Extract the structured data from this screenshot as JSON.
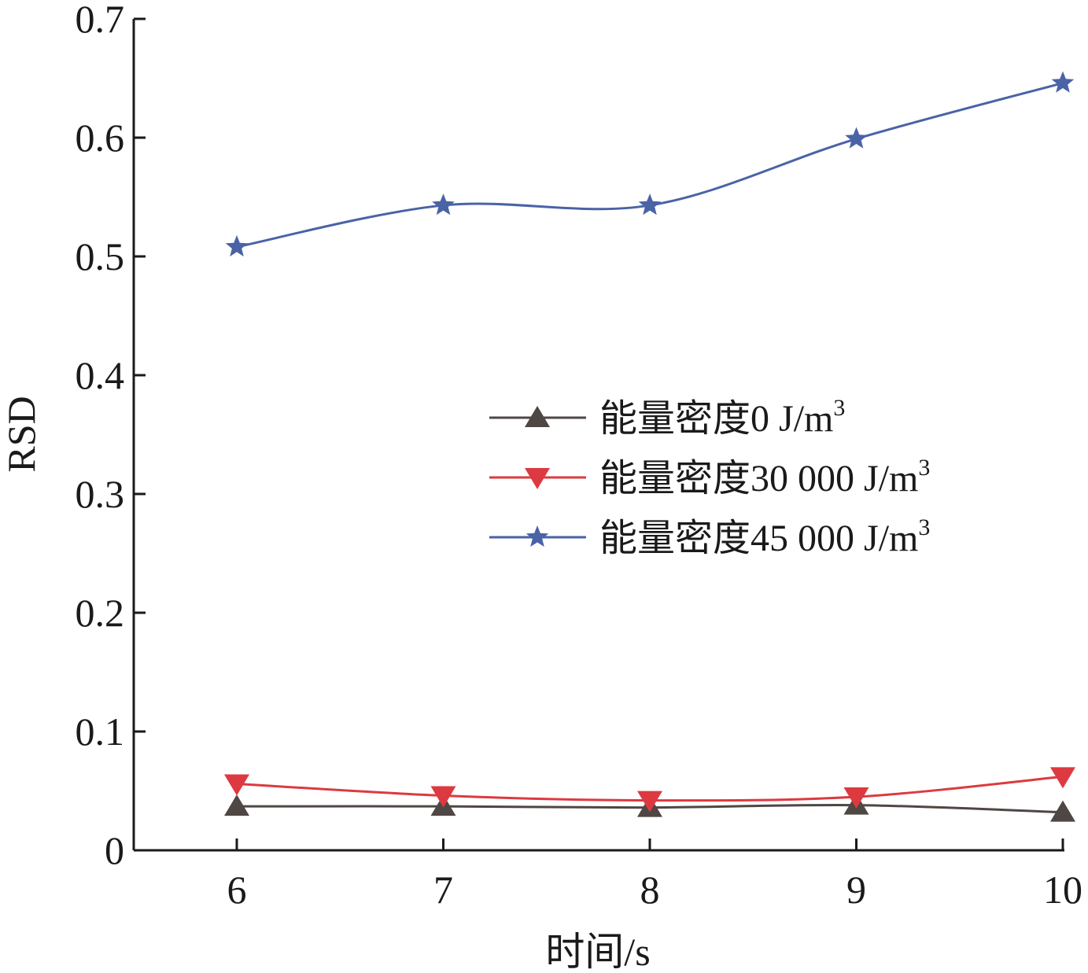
{
  "chart_data": {
    "type": "line",
    "title": "",
    "xlabel": "时间/s",
    "ylabel": "RSD",
    "x": [
      6,
      7,
      8,
      9,
      10
    ],
    "xlim": [
      5.5,
      10
    ],
    "ylim": [
      0,
      0.7
    ],
    "xticks": [
      "6",
      "7",
      "8",
      "9",
      "10"
    ],
    "yticks": [
      "0",
      "0.1",
      "0.2",
      "0.3",
      "0.4",
      "0.5",
      "0.6",
      "0.7"
    ],
    "yticks_values": [
      0,
      0.1,
      0.2,
      0.3,
      0.4,
      0.5,
      0.6,
      0.7
    ],
    "grid": false,
    "legend_position": "right-middle",
    "series": [
      {
        "name_prefix": "能量密度",
        "name_main": "0 J/m",
        "name_sup": "3",
        "marker": "triangle-up",
        "color": "#4f4744",
        "values": [
          0.037,
          0.037,
          0.036,
          0.038,
          0.032
        ]
      },
      {
        "name_prefix": "能量密度",
        "name_main": "30 000 J/m",
        "name_sup": "3",
        "marker": "triangle-down",
        "color": "#dc3a40",
        "values": [
          0.056,
          0.046,
          0.042,
          0.045,
          0.062
        ]
      },
      {
        "name_prefix": "能量密度",
        "name_main": "45 000 J/m",
        "name_sup": "3",
        "marker": "star",
        "color": "#4a63a6",
        "values": [
          0.508,
          0.543,
          0.543,
          0.599,
          0.646
        ]
      }
    ]
  }
}
